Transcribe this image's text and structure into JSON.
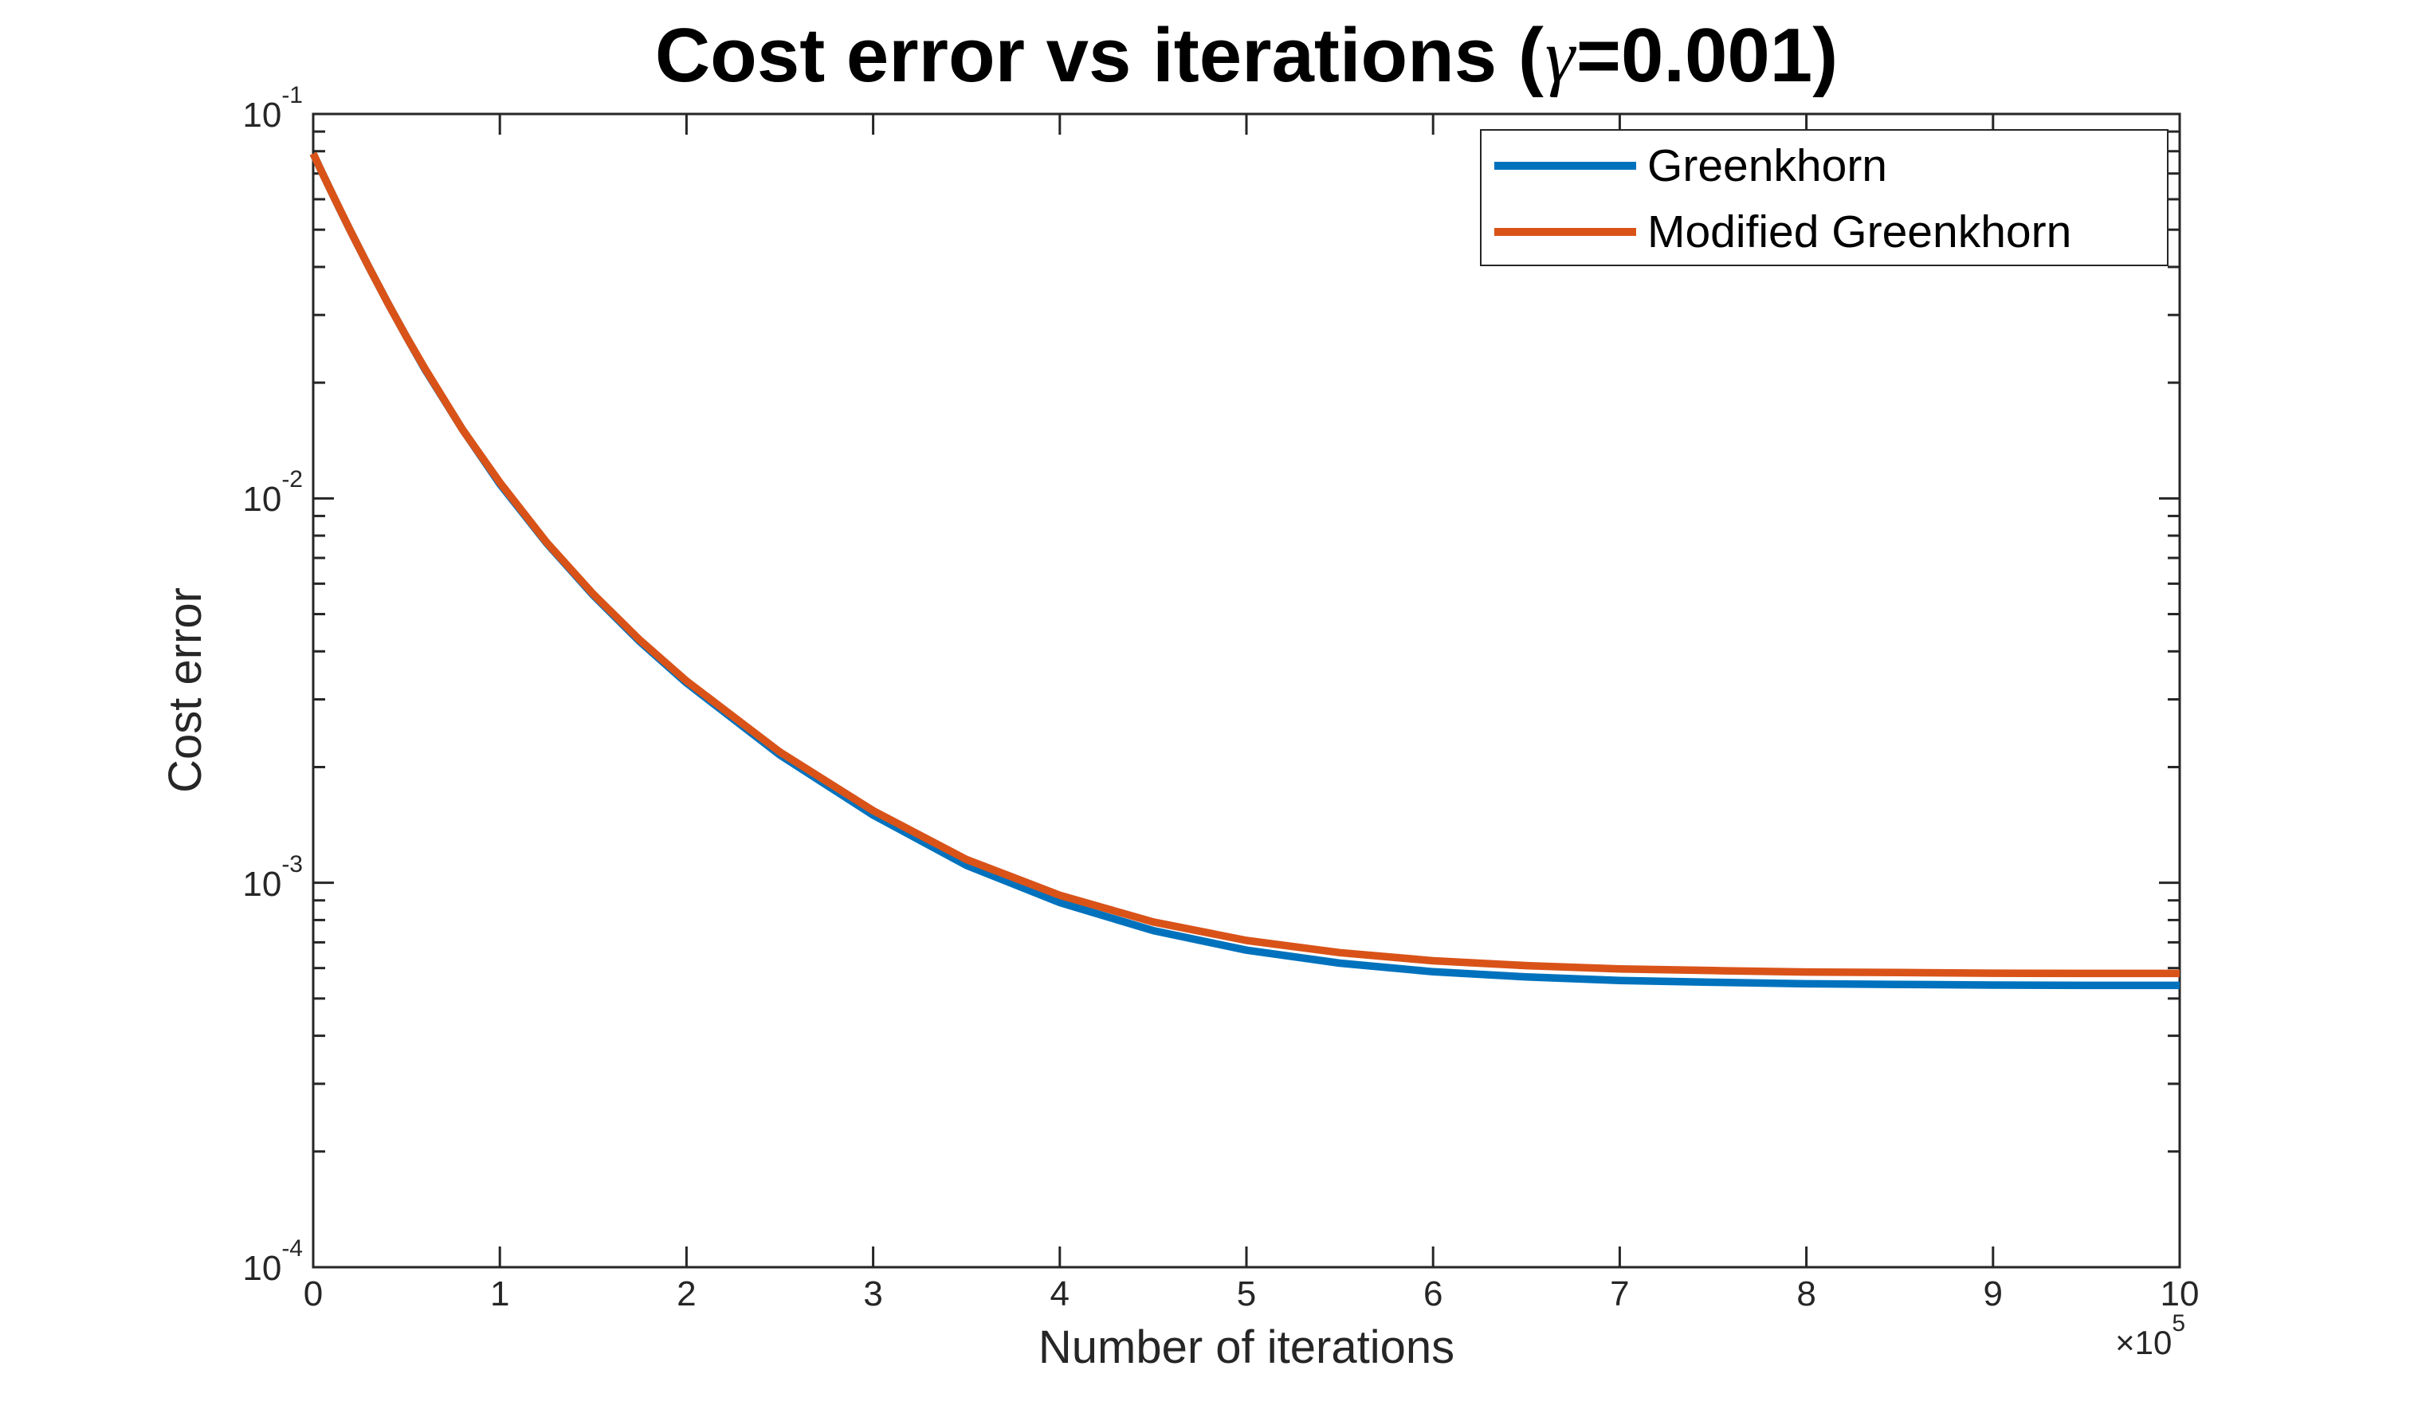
{
  "title": {
    "prefix": "Cost error vs iterations (",
    "gamma": "γ",
    "suffix": "=0.001)"
  },
  "axes": {
    "x": {
      "label": "Number of iterations",
      "multiplier": {
        "base": "×10",
        "exp": "5"
      },
      "ticks": [
        {
          "label": "0",
          "value": 0
        },
        {
          "label": "1",
          "value": 1
        },
        {
          "label": "2",
          "value": 2
        },
        {
          "label": "3",
          "value": 3
        },
        {
          "label": "4",
          "value": 4
        },
        {
          "label": "5",
          "value": 5
        },
        {
          "label": "6",
          "value": 6
        },
        {
          "label": "7",
          "value": 7
        },
        {
          "label": "8",
          "value": 8
        },
        {
          "label": "9",
          "value": 9
        },
        {
          "label": "10",
          "value": 10
        }
      ]
    },
    "y": {
      "label": "Cost error",
      "scale": "log",
      "ticks": [
        {
          "base": "10",
          "exp": "-1",
          "value": 0.1
        },
        {
          "base": "10",
          "exp": "-2",
          "value": 0.01
        },
        {
          "base": "10",
          "exp": "-3",
          "value": 0.001
        },
        {
          "base": "10",
          "exp": "-4",
          "value": 0.0001
        }
      ]
    }
  },
  "legend": {
    "position": "northeast",
    "entries": [
      {
        "label": "Greenkhorn",
        "color": "#0072BD"
      },
      {
        "label": "Modified Greenkhorn",
        "color": "#D95319"
      }
    ]
  },
  "colors": {
    "background": "#ffffff",
    "frame": "#262626",
    "blue": "#0072BD",
    "orange": "#D95319",
    "title": "#000000"
  },
  "chart_data": {
    "type": "line",
    "title": "Cost error vs iterations (gamma=0.001)",
    "xlabel": "Number of iterations",
    "ylabel": "Cost error",
    "x_multiplier": 100000,
    "xscale": "linear",
    "yscale": "log",
    "xlim": [
      0,
      10
    ],
    "ylim": [
      0.0001,
      0.1
    ],
    "grid": false,
    "legend_position": "northeast",
    "x": [
      0,
      0.05,
      0.1,
      0.15,
      0.2,
      0.3,
      0.4,
      0.5,
      0.6,
      0.8,
      1,
      1.25,
      1.5,
      1.75,
      2,
      2.5,
      3,
      3.5,
      4,
      4.5,
      5,
      5.5,
      6,
      6.5,
      7,
      7.5,
      8,
      8.5,
      9,
      9.5,
      10
    ],
    "series": [
      {
        "name": "Greenkhorn",
        "color": "#0072BD",
        "values": [
          0.0788,
          0.07,
          0.0623,
          0.0555,
          0.0496,
          0.0398,
          0.0322,
          0.0263,
          0.0216,
          0.0151,
          0.0109,
          0.00765,
          0.0056,
          0.00424,
          0.00331,
          0.00215,
          0.0015,
          0.00111,
          0.000888,
          0.000751,
          0.000668,
          0.000618,
          0.000587,
          0.000569,
          0.000557,
          0.000551,
          0.000546,
          0.000544,
          0.000542,
          0.000541,
          0.000541
        ]
      },
      {
        "name": "Modified Greenkhorn",
        "color": "#D95319",
        "values": [
          0.0789,
          0.07,
          0.0623,
          0.0556,
          0.0496,
          0.0398,
          0.0322,
          0.0263,
          0.0217,
          0.0151,
          0.011,
          0.00769,
          0.00564,
          0.00428,
          0.00335,
          0.00219,
          0.00154,
          0.00115,
          0.000928,
          0.000791,
          0.000708,
          0.000658,
          0.000627,
          0.000609,
          0.000597,
          0.000591,
          0.000586,
          0.000584,
          0.000582,
          0.000581,
          0.000581
        ]
      }
    ]
  }
}
